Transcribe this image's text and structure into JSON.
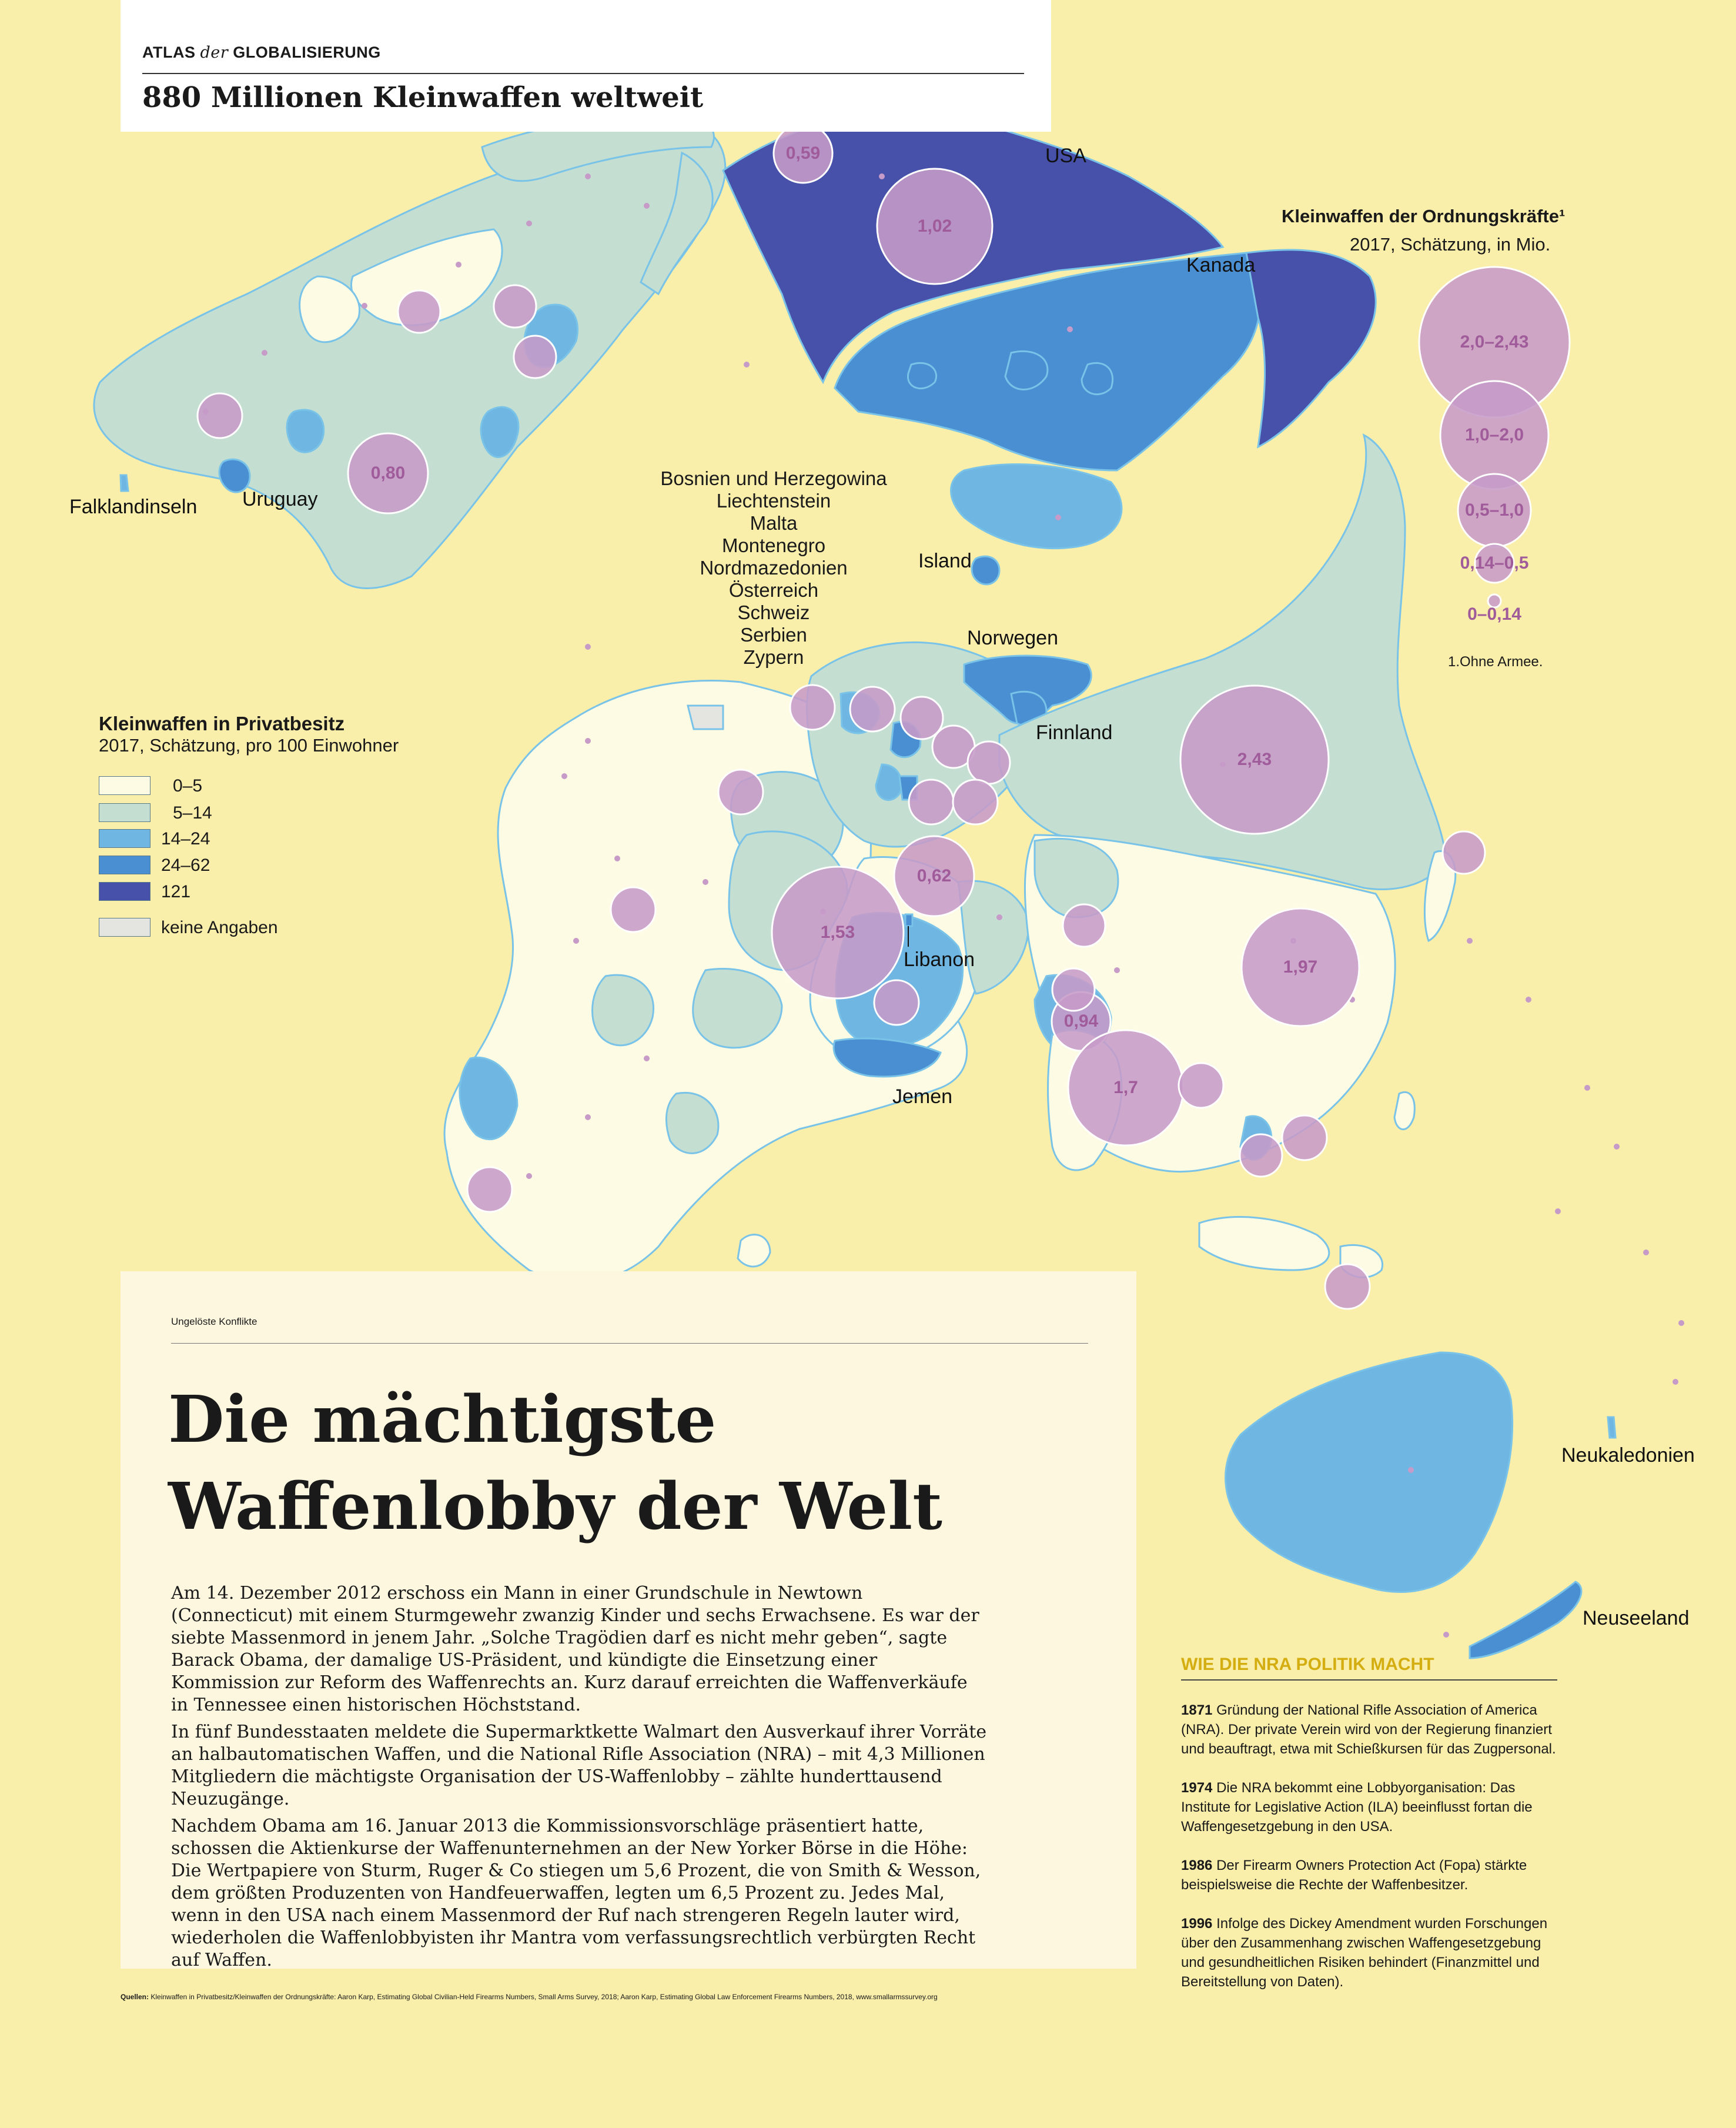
{
  "header": {
    "brand_main": "ATLAS",
    "brand_der": "der",
    "brand_end": "GLOBALISIERUNG",
    "map_title": "880 Millionen Kleinwaffen weltweit"
  },
  "colors": {
    "background": "#f9eeaa",
    "class_0_5": "#fdfbe4",
    "class_5_14": "#c4dfd1",
    "class_14_24": "#6fb6e2",
    "class_24_62": "#4b8fd3",
    "class_121": "#4751aa",
    "no_data": "#e4e4e0",
    "bubble": "#c79bc8",
    "bubble_label": "#a05c9a",
    "nra_title": "#d4ad10"
  },
  "map_labels": {
    "usa": "USA",
    "kanada": "Kanada",
    "falkland": "Falklandinseln",
    "uruguay": "Uruguay",
    "island": "Island",
    "norwegen": "Norwegen",
    "finnland": "Finnland",
    "libanon": "Libanon",
    "jemen": "Jemen",
    "neukaledonien": "Neukaledonien",
    "neuseeland": "Neuseeland",
    "europe_list": [
      "Bosnien und Herzegowina",
      "Liechtenstein",
      "Malta",
      "Montenegro",
      "Nordmazedonien",
      "Österreich",
      "Schweiz",
      "Serbien",
      "Zypern"
    ]
  },
  "bubbles": [
    "0,59",
    "1,02",
    "0,80",
    "2,43",
    "0,62",
    "1,53",
    "1,97",
    "0,94",
    "1,7"
  ],
  "legend_private": {
    "title": "Kleinwaffen in Privatbesitz",
    "subtitle": "2017, Schätzung, pro 100 Einwohner",
    "items": [
      {
        "label": "0–5"
      },
      {
        "label": "5–14"
      },
      {
        "label": "14–24"
      },
      {
        "label": "24–62"
      },
      {
        "label": "121"
      },
      {
        "label": "keine Angaben"
      }
    ]
  },
  "legend_police": {
    "title": "Kleinwaffen der Ordnungskräfte¹",
    "subtitle": "2017, Schätzung, in Mio.",
    "items": [
      "2,0–2,43",
      "1,0–2,0",
      "0,5–1,0",
      "0,14–0,5",
      "0–0,14"
    ],
    "note": "1.Ohne Armee."
  },
  "article": {
    "kicker": "Ungelöste Konflikte",
    "headline_1": "Die mächtigste",
    "headline_2": "Waffenlobby der Welt",
    "p1": "Am 14. Dezember 2012 erschoss ein Mann in einer Grundschule in Newtown (Connecticut) mit einem Sturmgewehr zwanzig Kinder und sechs Erwachsene. Es war der siebte Massenmord in jenem Jahr. „Solche Tragödien darf es nicht mehr geben“, sagte Barack Obama, der damalige US-Präsident, und kündigte die Einsetzung einer Kommission zur Reform des Waffenrechts an. Kurz darauf erreichten die Waffenverkäufe in Tennessee einen historischen Höchststand.",
    "p2": "In fünf Bundesstaaten meldete die Supermarktkette Walmart den Ausverkauf ihrer Vorräte an halbautomatischen Waffen, und die National Rifle Association (NRA) – mit 4,3 Millionen Mitgliedern die mächtigste Organisation der US-Waffenlobby – zählte hunderttausend Neuzugänge.",
    "p3": "Nachdem Obama am 16. Januar 2013 die Kommissionsvorschläge präsentiert hatte, schossen die Aktienkurse der Waffenunternehmen an der New Yorker Börse in die Höhe: Die Wertpapiere von Sturm, Ruger & Co stiegen um 5,6 Prozent, die von Smith & Wesson, dem größten Produzenten von Handfeuerwaffen, legten um 6,5 Prozent zu. Jedes Mal, wenn in den USA nach einem Massenmord der Ruf nach strengeren Regeln lauter wird, wiederholen die Waffenlobbyisten ihr Mantra vom verfassungsrechtlich verbürgten Recht auf Waffen."
  },
  "nra": {
    "title": "WIE DIE NRA POLITIK MACHT",
    "events": [
      {
        "year": "1871",
        "text": "Gründung der National Rifle Association of America (NRA). Der private Verein wird von der Regierung finanziert und beauftragt, etwa mit Schießkursen für das Zugpersonal."
      },
      {
        "year": "1974",
        "text": "Die NRA bekommt eine Lobbyorganisation: Das Institute for Legislative Action (ILA) beeinflusst fortan die Waffengesetzgebung in den USA."
      },
      {
        "year": "1986",
        "text": "Der Firearm Owners Protection Act (Fopa) stärkte beispielsweise die Rechte der Waffenbesitzer."
      },
      {
        "year": "1996",
        "text": "Infolge des Dickey Amendment wurden Forschungen über den Zusammenhang zwischen Waffengesetzgebung und gesundheitlichen Risiken behindert (Finanzmittel und Bereitstellung von Daten)."
      }
    ]
  },
  "sources": {
    "label": "Quellen:",
    "text": "Kleinwaffen in Privatbesitz/Kleinwaffen der Ordnungskräfte: Aaron Karp, Estimating Global Civilian-Held Firearms Numbers, Small Arms Survey, 2018; Aaron Karp, Estimating Global Law Enforcement Firearms Numbers, 2018, www.smallarmssurvey.org"
  }
}
